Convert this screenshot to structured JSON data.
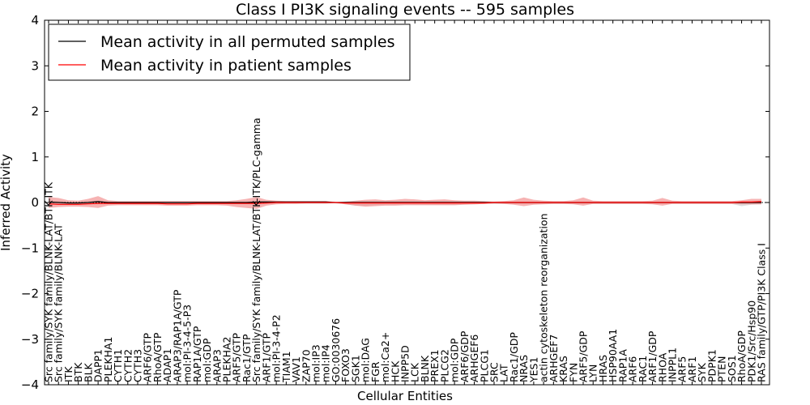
{
  "chart_data": {
    "type": "line",
    "title": "Class I PI3K signaling events -- 595 samples",
    "xlabel": "Cellular Entities",
    "ylabel": "Inferred Activity",
    "ylim": [
      -4,
      4
    ],
    "yticks": [
      -4,
      -3,
      -2,
      -1,
      0,
      1,
      2,
      3,
      4
    ],
    "ytick_labels": [
      "−4",
      "−3",
      "−2",
      "−1",
      "0",
      "1",
      "2",
      "3",
      "4"
    ],
    "legend_position": "top-left",
    "categories": [
      "Src family/SYK family/BLNK-LAT/BTK-ITK",
      "Src family/SYK family/BLNK-LAT",
      "ITK",
      "BTK",
      "BLK",
      "DAPP1",
      "PLEKHA1",
      "CYTH1",
      "CYTH2",
      "CYTH3",
      "ARF6/GTP",
      "RhoA/GTP",
      "ADAP1",
      "ARAP3/RAP1A/GTP",
      "mol:PI-3-4-5-P3",
      "RAP1A/GTP",
      "mol:GDP",
      "ARAP3",
      "PLEKHA2",
      "ARF5/GTP",
      "Rac1/GTP",
      "Src family/SYK family/BLNK-LAT/BTK-ITK/PLC-gamma",
      "ARF1/GTP",
      "mol:PI-3-4-P2",
      "TIAM1",
      "VAV1",
      "ZAP70",
      "mol:IP3",
      "mol:IP4",
      "GO:0030676",
      "FOXO3",
      "SGK1",
      "mol:DAG",
      "FGR",
      "mol:Ca2+",
      "HCK",
      "INPP5D",
      "LCK",
      "BLNK",
      "PREX1",
      "PLCG2",
      "mol:GDP",
      "ARF6/GDP",
      "ARHGEF6",
      "PLCG1",
      "SRC",
      "LAT",
      "Rac1/GDP",
      "NRAS",
      "YES1",
      "actin cytoskeleton reorganization",
      "ARHGEF7",
      "KRAS",
      "FYN",
      "ARF5/GDP",
      "LYN",
      "HRAS",
      "HSP90AA1",
      "RAP1A",
      "ARF6",
      "RAC1",
      "ARF1/GDP",
      "RHOA",
      "INPPL1",
      "ARF5",
      "ARF1",
      "SYK",
      "PDPK1",
      "PTEN",
      "SOS1",
      "RhoA/GDP",
      "PDK1/Src/Hsp90",
      "RAS family/GTP/PI3K Class I"
    ],
    "series": [
      {
        "name": "Mean activity in all permuted samples",
        "color": "#000000",
        "values": [
          0.01,
          0.0,
          -0.01,
          -0.01,
          0.0,
          0.02,
          0.0,
          0.0,
          0.0,
          0.0,
          0.0,
          0.0,
          0.0,
          0.0,
          0.0,
          0.0,
          0.0,
          0.0,
          0.0,
          0.0,
          0.0,
          0.01,
          0.01,
          0.01,
          0.01,
          0.01,
          0.01,
          0.01,
          0.01,
          0.0,
          0.0,
          0.0,
          0.0,
          0.0,
          0.0,
          0.0,
          0.0,
          0.0,
          0.0,
          0.0,
          0.0,
          0.0,
          0.0,
          0.0,
          0.0,
          0.0,
          0.0,
          0.0,
          0.0,
          0.0,
          0.0,
          0.0,
          0.0,
          0.0,
          0.0,
          0.0,
          0.0,
          0.0,
          0.0,
          0.0,
          0.0,
          0.0,
          0.0,
          0.0,
          0.0,
          0.0,
          0.0,
          0.0,
          0.0,
          0.0,
          0.0,
          0.0,
          0.0
        ]
      },
      {
        "name": "Mean activity in patient samples",
        "color": "#ff0000",
        "values": [
          -0.03,
          -0.04,
          -0.04,
          -0.04,
          -0.03,
          -0.02,
          -0.02,
          -0.02,
          -0.02,
          -0.02,
          -0.02,
          -0.02,
          -0.03,
          -0.03,
          -0.03,
          -0.02,
          -0.02,
          -0.02,
          -0.02,
          -0.02,
          -0.02,
          -0.02,
          -0.01,
          0.0,
          0.0,
          0.0,
          0.0,
          0.0,
          0.0,
          0.0,
          -0.01,
          -0.01,
          -0.01,
          -0.01,
          -0.01,
          -0.01,
          -0.01,
          -0.01,
          -0.01,
          -0.01,
          -0.01,
          -0.01,
          -0.01,
          -0.01,
          -0.01,
          0.0,
          0.0,
          0.0,
          0.0,
          0.0,
          0.0,
          0.0,
          0.0,
          0.0,
          0.0,
          0.0,
          0.0,
          0.0,
          0.0,
          0.0,
          0.0,
          0.0,
          0.0,
          0.0,
          0.0,
          0.0,
          0.0,
          0.0,
          0.0,
          0.0,
          0.01,
          0.01,
          0.02
        ]
      }
    ],
    "bands": {
      "patient_upper": [
        0.12,
        0.1,
        0.05,
        0.04,
        0.08,
        0.14,
        0.05,
        0.03,
        0.03,
        0.03,
        0.03,
        0.03,
        0.03,
        0.03,
        0.03,
        0.03,
        0.03,
        0.03,
        0.03,
        0.05,
        0.08,
        0.12,
        0.06,
        0.04,
        0.03,
        0.03,
        0.03,
        0.03,
        0.03,
        0.01,
        0.02,
        0.04,
        0.06,
        0.07,
        0.05,
        0.06,
        0.08,
        0.07,
        0.05,
        0.06,
        0.07,
        0.05,
        0.04,
        0.04,
        0.03,
        0.02,
        0.03,
        0.05,
        0.11,
        0.06,
        0.04,
        0.03,
        0.03,
        0.05,
        0.11,
        0.04,
        0.03,
        0.03,
        0.03,
        0.03,
        0.03,
        0.04,
        0.1,
        0.04,
        0.03,
        0.03,
        0.03,
        0.03,
        0.03,
        0.03,
        0.05,
        0.08,
        0.08
      ],
      "patient_lower": [
        -0.12,
        -0.1,
        -0.09,
        -0.09,
        -0.1,
        -0.12,
        -0.07,
        -0.06,
        -0.06,
        -0.06,
        -0.06,
        -0.06,
        -0.07,
        -0.07,
        -0.07,
        -0.06,
        -0.06,
        -0.06,
        -0.07,
        -0.1,
        -0.12,
        -0.14,
        -0.07,
        -0.04,
        -0.03,
        -0.03,
        -0.02,
        -0.02,
        -0.02,
        -0.01,
        -0.04,
        -0.07,
        -0.09,
        -0.08,
        -0.07,
        -0.07,
        -0.06,
        -0.06,
        -0.06,
        -0.06,
        -0.06,
        -0.06,
        -0.05,
        -0.04,
        -0.03,
        -0.02,
        -0.03,
        -0.05,
        -0.08,
        -0.05,
        -0.04,
        -0.03,
        -0.03,
        -0.04,
        -0.07,
        -0.03,
        -0.03,
        -0.03,
        -0.03,
        -0.03,
        -0.03,
        -0.04,
        -0.07,
        -0.03,
        -0.03,
        -0.03,
        -0.03,
        -0.03,
        -0.03,
        -0.03,
        -0.04,
        -0.04,
        -0.04
      ],
      "permuted_upper": [
        0.03,
        0.03,
        0.02,
        0.02,
        0.03,
        0.04,
        0.02,
        0.02,
        0.02,
        0.02,
        0.02,
        0.02,
        0.02,
        0.02,
        0.02,
        0.02,
        0.02,
        0.02,
        0.02,
        0.02,
        0.02,
        0.03,
        0.03,
        0.03,
        0.03,
        0.03,
        0.03,
        0.03,
        0.03,
        0.01,
        0.02,
        0.03,
        0.03,
        0.03,
        0.03,
        0.03,
        0.03,
        0.03,
        0.03,
        0.03,
        0.03,
        0.03,
        0.03,
        0.03,
        0.02,
        0.02,
        0.02,
        0.02,
        0.02,
        0.02,
        0.02,
        0.02,
        0.02,
        0.02,
        0.02,
        0.02,
        0.02,
        0.02,
        0.02,
        0.02,
        0.02,
        0.02,
        0.02,
        0.02,
        0.02,
        0.02,
        0.02,
        0.02,
        0.02,
        0.02,
        0.02,
        0.02,
        0.02
      ],
      "permuted_lower": [
        -0.03,
        -0.03,
        -0.03,
        -0.03,
        -0.03,
        -0.03,
        -0.03,
        -0.03,
        -0.03,
        -0.03,
        -0.03,
        -0.03,
        -0.03,
        -0.03,
        -0.03,
        -0.03,
        -0.03,
        -0.03,
        -0.03,
        -0.03,
        -0.03,
        -0.03,
        -0.03,
        -0.03,
        -0.03,
        -0.03,
        -0.03,
        -0.03,
        -0.03,
        -0.02,
        -0.04,
        -0.07,
        -0.07,
        -0.06,
        -0.05,
        -0.05,
        -0.05,
        -0.05,
        -0.05,
        -0.05,
        -0.05,
        -0.05,
        -0.04,
        -0.04,
        -0.03,
        -0.03,
        -0.03,
        -0.03,
        -0.03,
        -0.03,
        -0.03,
        -0.03,
        -0.03,
        -0.03,
        -0.03,
        -0.03,
        -0.03,
        -0.03,
        -0.03,
        -0.03,
        -0.03,
        -0.03,
        -0.03,
        -0.03,
        -0.03,
        -0.03,
        -0.03,
        -0.03,
        -0.03,
        -0.03,
        -0.08,
        -0.05,
        -0.04
      ]
    },
    "band_colors": {
      "patient": "#f08080",
      "permuted": "#c8c8c8"
    },
    "legend": [
      {
        "label": "Mean activity in all permuted samples",
        "color": "#000000"
      },
      {
        "label": "Mean activity in patient samples",
        "color": "#ff0000"
      }
    ]
  }
}
